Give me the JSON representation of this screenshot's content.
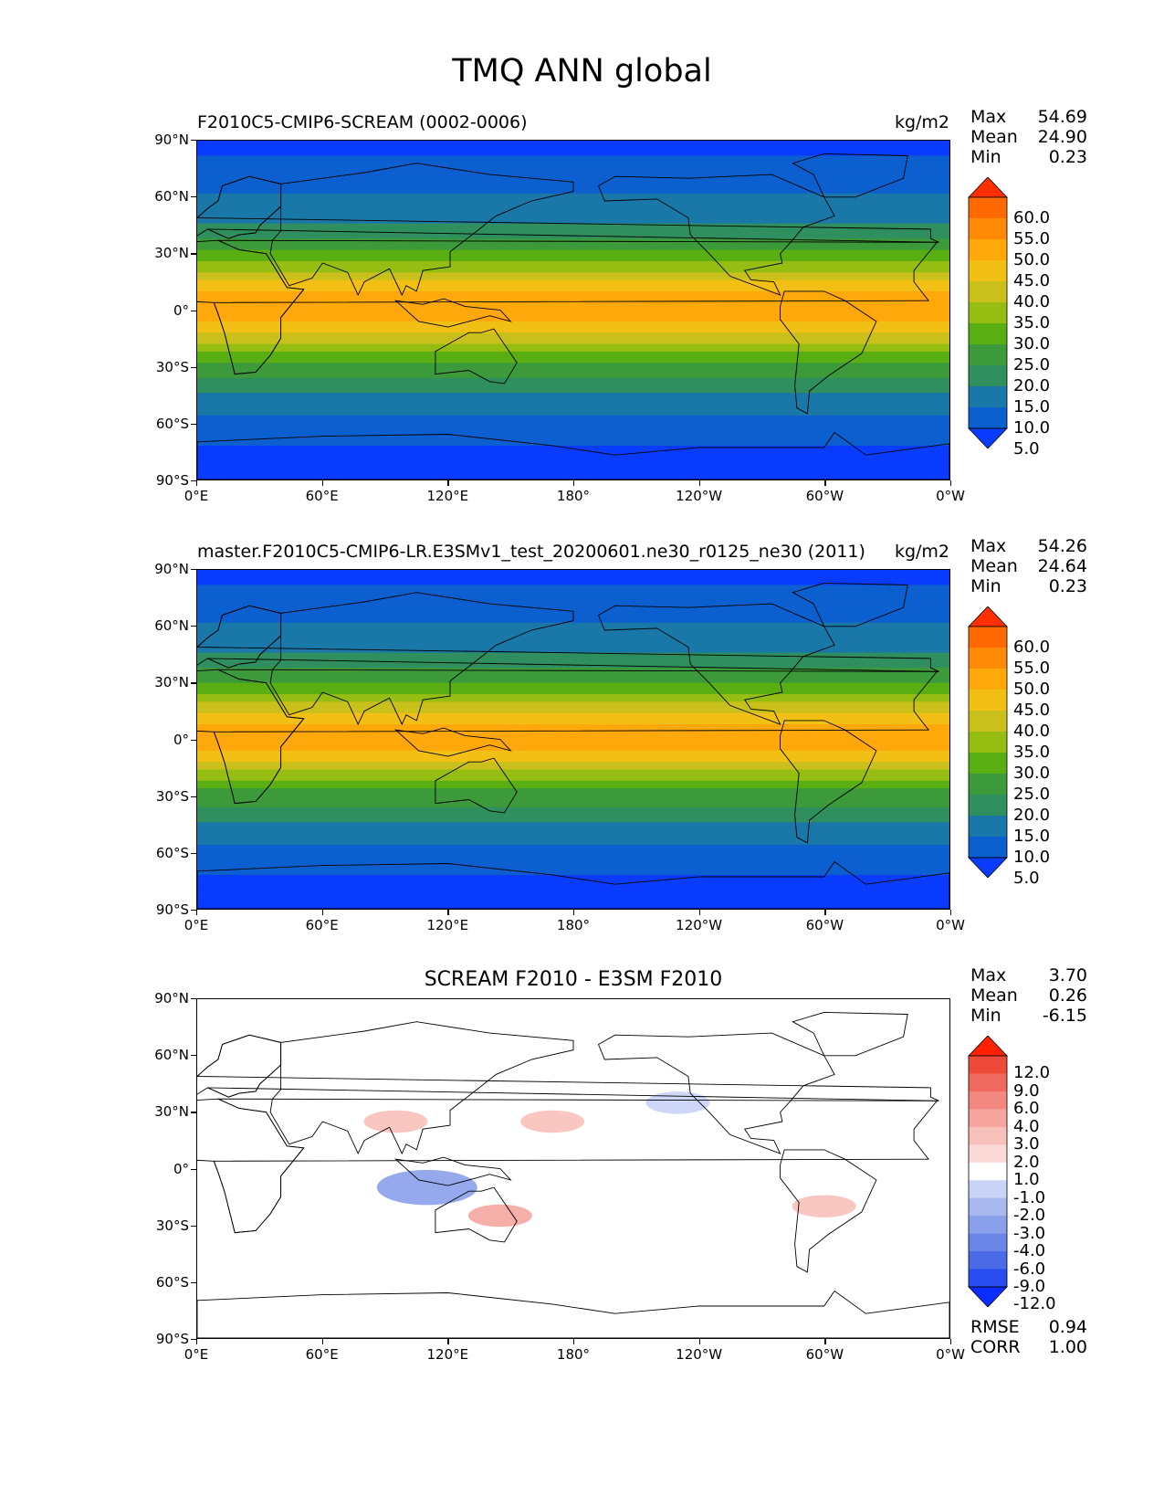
{
  "figure": {
    "title": "TMQ ANN global"
  },
  "axes": {
    "lat_labels": [
      "90°N",
      "60°N",
      "30°N",
      "0°",
      "30°S",
      "60°S",
      "90°S"
    ],
    "lon_labels": [
      "0°E",
      "60°E",
      "120°E",
      "180°",
      "120°W",
      "60°W",
      "0°W"
    ]
  },
  "panels": [
    {
      "title": "F2010C5-CMIP6-SCREAM (0002-0006)",
      "units": "kg/m2",
      "stats": {
        "max_label": "Max",
        "max": "54.69",
        "mean_label": "Mean",
        "mean": "24.90",
        "min_label": "Min",
        "min": "0.23"
      },
      "colorbar": {
        "labels": [
          "60.0",
          "55.0",
          "50.0",
          "45.0",
          "40.0",
          "35.0",
          "30.0",
          "25.0",
          "20.0",
          "15.0",
          "10.0",
          "5.0"
        ]
      }
    },
    {
      "title": "master.F2010C5-CMIP6-LR.E3SMv1_test_20200601.ne30_r0125_ne30 (2011)",
      "units": "kg/m2",
      "stats": {
        "max_label": "Max",
        "max": "54.26",
        "mean_label": "Mean",
        "mean": "24.64",
        "min_label": "Min",
        "min": "0.23"
      },
      "colorbar": {
        "labels": [
          "60.0",
          "55.0",
          "50.0",
          "45.0",
          "40.0",
          "35.0",
          "30.0",
          "25.0",
          "20.0",
          "15.0",
          "10.0",
          "5.0"
        ]
      }
    },
    {
      "title": "SCREAM F2010 - E3SM F2010",
      "units": "",
      "stats": {
        "max_label": "Max",
        "max": "3.70",
        "mean_label": "Mean",
        "mean": "0.26",
        "min_label": "Min",
        "min": "-6.15"
      },
      "colorbar": {
        "labels": [
          "12.0",
          "9.0",
          "6.0",
          "4.0",
          "3.0",
          "2.0",
          "1.0",
          "-1.0",
          "-2.0",
          "-3.0",
          "-4.0",
          "-6.0",
          "-9.0",
          "-12.0"
        ]
      },
      "extra": {
        "rmse_label": "RMSE",
        "rmse": "0.94",
        "corr_label": "CORR",
        "corr": "1.00"
      }
    }
  ],
  "chart_data": [
    {
      "type": "heatmap",
      "title": "F2010C5-CMIP6-SCREAM (0002-0006)",
      "variable": "TMQ",
      "season": "ANN",
      "region": "global",
      "units": "kg/m2",
      "xlim": [
        0,
        360
      ],
      "ylim": [
        -90,
        90
      ],
      "stats": {
        "max": 54.69,
        "mean": 24.9,
        "min": 0.23
      },
      "zonal_band_values": [
        {
          "lat": 85,
          "value": 4
        },
        {
          "lat": 65,
          "value": 9
        },
        {
          "lat": 45,
          "value": 15
        },
        {
          "lat": 25,
          "value": 30
        },
        {
          "lat": 10,
          "value": 45
        },
        {
          "lat": 0,
          "value": 50
        },
        {
          "lat": -10,
          "value": 42
        },
        {
          "lat": -25,
          "value": 27
        },
        {
          "lat": -45,
          "value": 14
        },
        {
          "lat": -60,
          "value": 8
        },
        {
          "lat": -80,
          "value": 3
        }
      ],
      "contour_levels": [
        5,
        10,
        15,
        20,
        25,
        30,
        35,
        40,
        45,
        50,
        55,
        60
      ],
      "colors": [
        "#0a3cff",
        "#0c5fcf",
        "#1a78a8",
        "#2f8f5e",
        "#3c9a3a",
        "#59ae12",
        "#95bd12",
        "#c9c01b",
        "#f2c014",
        "#ffa80c",
        "#ff8a05",
        "#ff6a00",
        "#ff2f00"
      ]
    },
    {
      "type": "heatmap",
      "title": "master.F2010C5-CMIP6-LR.E3SMv1_test_20200601.ne30_r0125_ne30 (2011)",
      "variable": "TMQ",
      "season": "ANN",
      "region": "global",
      "units": "kg/m2",
      "xlim": [
        0,
        360
      ],
      "ylim": [
        -90,
        90
      ],
      "stats": {
        "max": 54.26,
        "mean": 24.64,
        "min": 0.23
      },
      "zonal_band_values": [
        {
          "lat": 85,
          "value": 4
        },
        {
          "lat": 65,
          "value": 9
        },
        {
          "lat": 45,
          "value": 15
        },
        {
          "lat": 25,
          "value": 29
        },
        {
          "lat": 10,
          "value": 44
        },
        {
          "lat": 0,
          "value": 49
        },
        {
          "lat": -10,
          "value": 41
        },
        {
          "lat": -25,
          "value": 26
        },
        {
          "lat": -45,
          "value": 14
        },
        {
          "lat": -60,
          "value": 8
        },
        {
          "lat": -80,
          "value": 3
        }
      ],
      "contour_levels": [
        5,
        10,
        15,
        20,
        25,
        30,
        35,
        40,
        45,
        50,
        55,
        60
      ],
      "colors": [
        "#0a3cff",
        "#0c5fcf",
        "#1a78a8",
        "#2f8f5e",
        "#3c9a3a",
        "#59ae12",
        "#95bd12",
        "#c9c01b",
        "#f2c014",
        "#ffa80c",
        "#ff8a05",
        "#ff6a00",
        "#ff2f00"
      ]
    },
    {
      "type": "heatmap",
      "title": "SCREAM F2010 - E3SM F2010",
      "variable": "TMQ",
      "season": "ANN",
      "region": "global",
      "xlim": [
        0,
        360
      ],
      "ylim": [
        -90,
        90
      ],
      "stats": {
        "max": 3.7,
        "mean": 0.26,
        "min": -6.15,
        "rmse": 0.94,
        "corr": 1.0
      },
      "contour_levels": [
        -12,
        -9,
        -6,
        -4,
        -3,
        -2,
        -1,
        1,
        2,
        3,
        4,
        6,
        9,
        12
      ],
      "colors": [
        "#0a2cff",
        "#2a4df2",
        "#4a6ae8",
        "#6a86e6",
        "#8aa0ea",
        "#a9b9f0",
        "#c9d3f6",
        "#ffffff",
        "#fbd9d6",
        "#f8c0bb",
        "#f5a59e",
        "#f28880",
        "#f0695e",
        "#ee4a3a",
        "#ff2200"
      ],
      "anomaly_features": [
        {
          "lon": 110,
          "lat": -10,
          "value": -4
        },
        {
          "lon": 145,
          "lat": -25,
          "value": 3
        },
        {
          "lon": 300,
          "lat": -20,
          "value": 2.5
        },
        {
          "lon": 95,
          "lat": 25,
          "value": 2.5
        },
        {
          "lon": 170,
          "lat": 25,
          "value": 2
        },
        {
          "lon": 230,
          "lat": 35,
          "value": -2
        }
      ]
    }
  ]
}
